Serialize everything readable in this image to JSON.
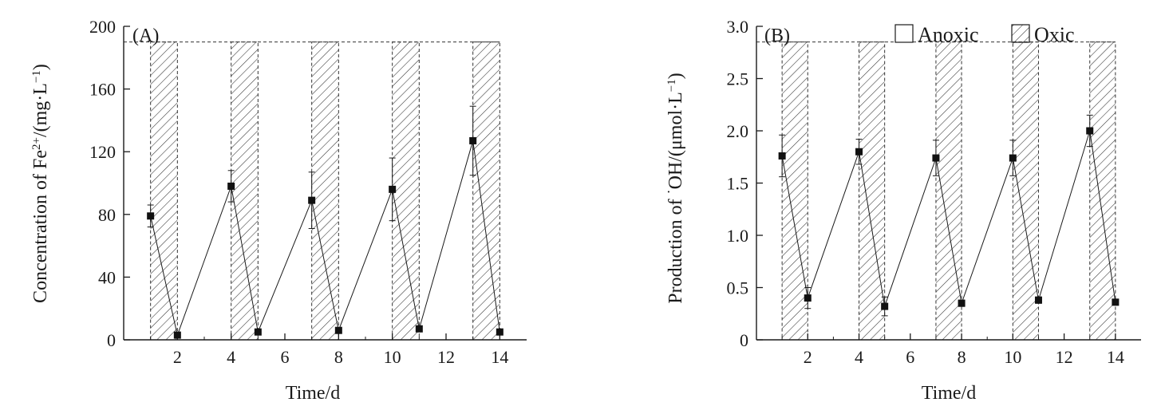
{
  "chart_data": [
    {
      "type": "line",
      "panel_label": "(A)",
      "xlabel": "Time/d",
      "ylabel_main": "Concentration of Fe",
      "ylabel_sup": "2+",
      "ylabel_mid": "/(mg·L",
      "ylabel_sup2": "−1",
      "ylabel_end": ")",
      "xlim": [
        0,
        15
      ],
      "ylim": [
        0,
        200
      ],
      "xticks": [
        2,
        4,
        6,
        8,
        10,
        12,
        14
      ],
      "yticks": [
        0,
        40,
        80,
        120,
        160,
        200
      ],
      "oxic_periods": [
        [
          1,
          2
        ],
        [
          4,
          5
        ],
        [
          7,
          8
        ],
        [
          10,
          11
        ],
        [
          13,
          14
        ]
      ],
      "oxic_level": 190,
      "series": [
        {
          "x": [
            1,
            2,
            4,
            5,
            7,
            8,
            10,
            11,
            13,
            14
          ],
          "y": [
            79,
            3,
            98,
            5,
            89,
            6,
            96,
            7,
            127,
            5
          ],
          "err": [
            7,
            1,
            10,
            1,
            18,
            1,
            20,
            1,
            22,
            1
          ]
        }
      ]
    },
    {
      "type": "line",
      "panel_label": "(B)",
      "xlabel": "Time/d",
      "ylabel_pre": "Production of ",
      "ylabel_dot": "·",
      "ylabel_rest": "OH/(μmol·L",
      "ylabel_sup": "−1",
      "ylabel_end": ")",
      "xlim": [
        0,
        15
      ],
      "ylim": [
        0,
        3.0
      ],
      "xticks": [
        2,
        4,
        6,
        8,
        10,
        12,
        14
      ],
      "ytick_labels": [
        "0",
        "0.5",
        "1.0",
        "1.5",
        "2.0",
        "2.5",
        "3.0"
      ],
      "yticks": [
        0,
        0.5,
        1.0,
        1.5,
        2.0,
        2.5,
        3.0
      ],
      "oxic_periods": [
        [
          1,
          2
        ],
        [
          4,
          5
        ],
        [
          7,
          8
        ],
        [
          10,
          11
        ],
        [
          13,
          14
        ]
      ],
      "oxic_level": 2.85,
      "legend": {
        "position": "top-right",
        "anoxic": "Anoxic",
        "oxic": "Oxic"
      },
      "series": [
        {
          "x": [
            1,
            2,
            4,
            5,
            7,
            8,
            10,
            11,
            13,
            14
          ],
          "y": [
            1.76,
            0.4,
            1.8,
            0.32,
            1.74,
            0.35,
            1.74,
            0.38,
            2.0,
            0.36
          ],
          "err": [
            0.2,
            0.1,
            0.12,
            0.09,
            0.17,
            0.03,
            0.17,
            0.03,
            0.15,
            0.02
          ]
        }
      ]
    }
  ]
}
